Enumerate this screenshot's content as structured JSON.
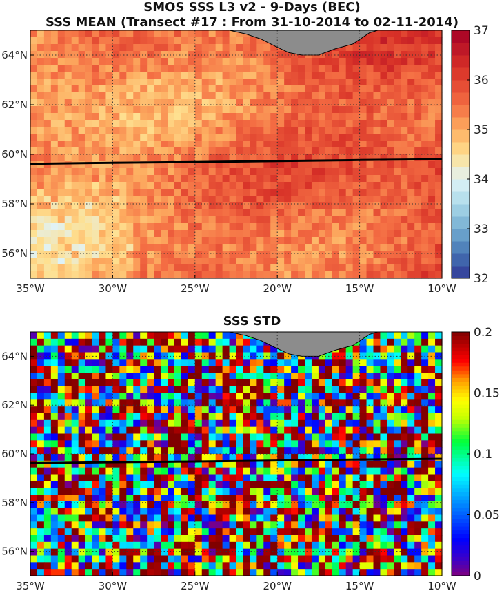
{
  "titles": {
    "line1": "SMOS SSS L3 v2 - 9-Days (BEC)",
    "line2": "SSS MEAN (Transect #17 : From 31-10-2014 to 02-11-2014)",
    "line3": "SSS STD"
  },
  "map_data": {
    "projection": "equirectangular",
    "lon_range": [
      -35,
      -10
    ],
    "lat_range": [
      55,
      65
    ],
    "lon_ticks": [
      -35,
      -30,
      -25,
      -20,
      -15,
      -10
    ],
    "lon_tick_labels": [
      "35°W",
      "30°W",
      "25°W",
      "20°W",
      "15°W",
      "10°W"
    ],
    "lat_ticks": [
      56,
      58,
      60,
      62,
      64
    ],
    "lat_tick_labels": [
      "56°N",
      "58°N",
      "60°N",
      "62°N",
      "64°N"
    ],
    "land_color": "#8c8c8c",
    "grid": "dotted",
    "transect": {
      "color": "#000000",
      "points": [
        [
          -35,
          59.62
        ],
        [
          -30,
          59.66
        ],
        [
          -25,
          59.69
        ],
        [
          -20,
          59.73
        ],
        [
          -15,
          59.77
        ],
        [
          -10,
          59.8
        ]
      ]
    }
  },
  "panels": [
    {
      "id": "mean",
      "colormap": "RdYlBu_r",
      "colorbar": {
        "min": 32,
        "max": 37,
        "ticks": [
          32,
          33,
          34,
          35,
          36,
          37
        ],
        "tick_labels": [
          "32",
          "33",
          "34",
          "35",
          "36",
          "37"
        ],
        "levels": 20
      }
    },
    {
      "id": "std",
      "colormap": "jet",
      "colorbar": {
        "min": 0,
        "max": 0.2,
        "ticks": [
          0,
          0.05,
          0.1,
          0.15,
          0.2
        ],
        "tick_labels": [
          "0",
          "0.05",
          "0.1",
          "0.15",
          "0.2"
        ],
        "levels": 64
      }
    }
  ]
}
